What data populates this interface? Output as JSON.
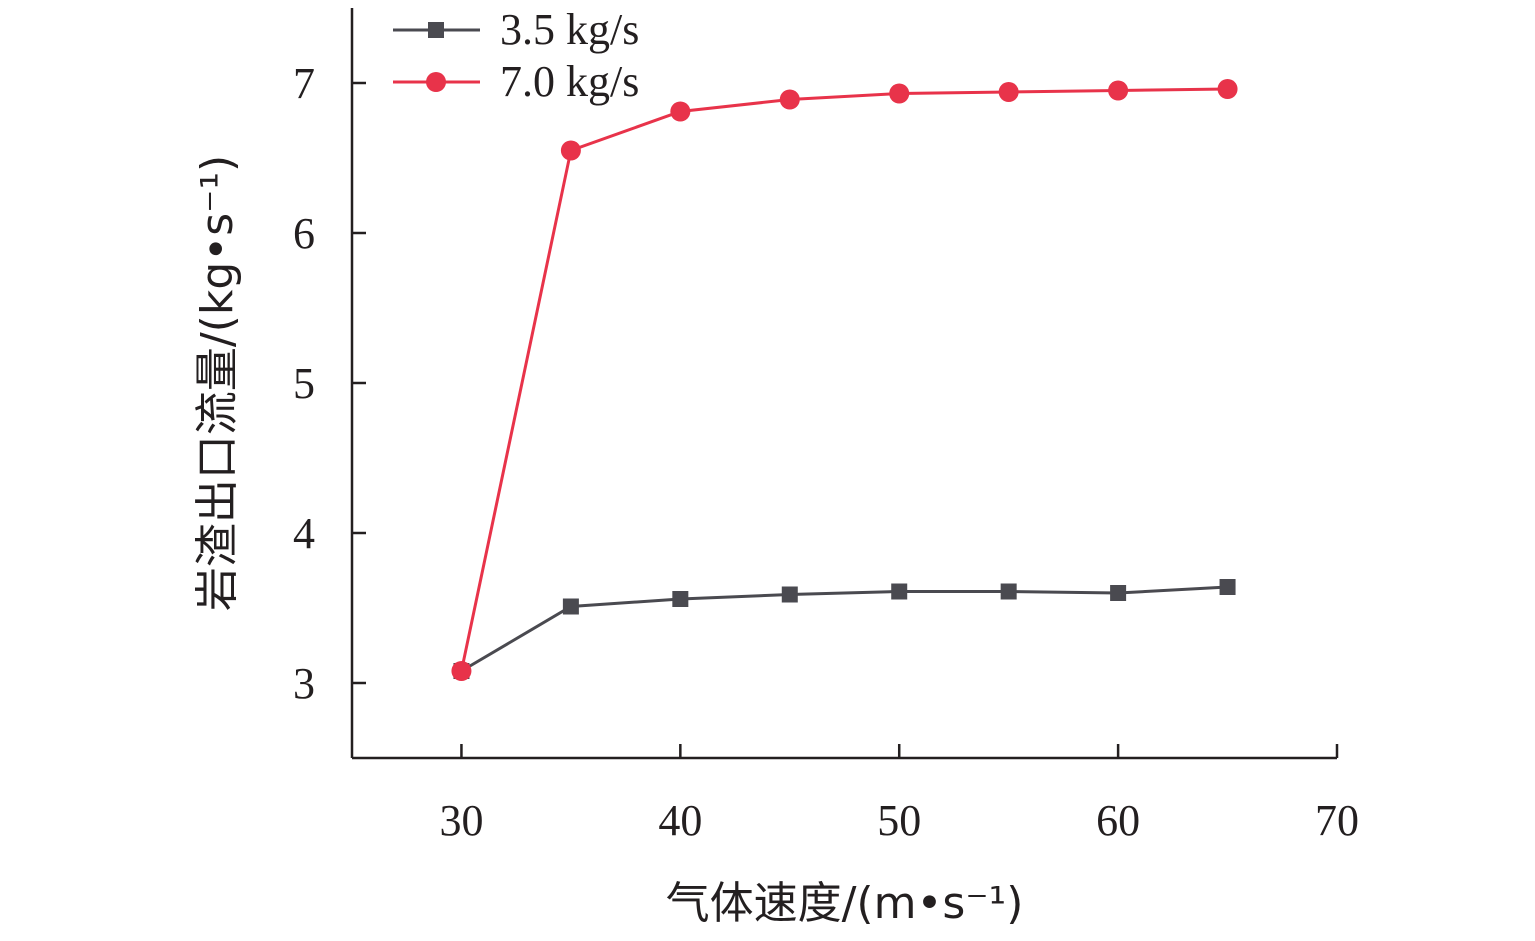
{
  "chart_data": {
    "type": "line",
    "xlabel": "气体速度/(m•s⁻¹)",
    "ylabel": "岩渣出口流量/(kg•s⁻¹)",
    "x": [
      30,
      35,
      40,
      45,
      50,
      55,
      60,
      65
    ],
    "xlim": [
      25,
      70
    ],
    "ylim": [
      2.5,
      7.5
    ],
    "xticks": [
      30,
      40,
      50,
      60,
      70
    ],
    "yticks": [
      3,
      4,
      5,
      6,
      7
    ],
    "grid": false,
    "legend_position": "top-left",
    "series": [
      {
        "name": "3.5 kg/s",
        "marker": "square",
        "color": "#4a4a50",
        "values": [
          3.08,
          3.51,
          3.56,
          3.59,
          3.61,
          3.61,
          3.6,
          3.64
        ]
      },
      {
        "name": "7.0 kg/s",
        "marker": "circle",
        "color": "#e8334a",
        "values": [
          3.08,
          6.55,
          6.81,
          6.89,
          6.93,
          6.94,
          6.95,
          6.96
        ]
      }
    ]
  }
}
